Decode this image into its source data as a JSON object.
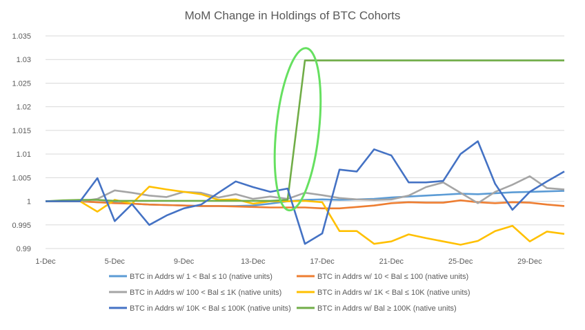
{
  "chart_data": {
    "type": "line",
    "title": "MoM Change in Holdings of BTC Cohorts",
    "xlabel": "",
    "ylabel": "",
    "ylim": [
      0.99,
      1.035
    ],
    "yticks": [
      "0.99",
      "0.995",
      "1",
      "1.005",
      "1.01",
      "1.015",
      "1.02",
      "1.025",
      "1.03",
      "1.035"
    ],
    "x": [
      "1-Dec",
      "2-Dec",
      "3-Dec",
      "4-Dec",
      "5-Dec",
      "6-Dec",
      "7-Dec",
      "8-Dec",
      "9-Dec",
      "10-Dec",
      "11-Dec",
      "12-Dec",
      "13-Dec",
      "14-Dec",
      "15-Dec",
      "16-Dec",
      "17-Dec",
      "18-Dec",
      "19-Dec",
      "20-Dec",
      "21-Dec",
      "22-Dec",
      "23-Dec",
      "24-Dec",
      "25-Dec",
      "26-Dec",
      "27-Dec",
      "28-Dec",
      "29-Dec",
      "30-Dec",
      "31-Dec"
    ],
    "xtick_labels": [
      "1-Dec",
      "5-Dec",
      "9-Dec",
      "13-Dec",
      "17-Dec",
      "21-Dec",
      "25-Dec",
      "29-Dec"
    ],
    "grid": true,
    "legend_position": "bottom",
    "annotation": "green ellipse highlighting the jump around 15-Dec to 16-Dec",
    "series": [
      {
        "name": "BTC in Addrs w/ 1 < Bal ≤ 10 (native units)",
        "color": "#5B9BD5",
        "values": [
          1.0,
          1.0,
          1.0,
          0.9998,
          0.9997,
          0.9995,
          0.9993,
          0.9992,
          0.9991,
          0.999,
          0.999,
          0.999,
          0.9991,
          0.9995,
          1.0,
          1.0003,
          1.0004,
          1.0003,
          1.0004,
          1.0005,
          1.0008,
          1.001,
          1.0012,
          1.0014,
          1.0016,
          1.0015,
          1.0017,
          1.0019,
          1.002,
          1.0021,
          1.0022
        ]
      },
      {
        "name": "BTC in Addrs w/ 10 < Bal ≤ 100 (native units)",
        "color": "#ED7D31",
        "values": [
          1.0,
          1.0,
          1.0,
          0.9998,
          0.9996,
          0.9995,
          0.9993,
          0.9992,
          0.9991,
          0.999,
          0.999,
          0.9989,
          0.9988,
          0.9987,
          0.9987,
          0.9987,
          0.9985,
          0.9985,
          0.9988,
          0.9991,
          0.9996,
          0.9998,
          0.9997,
          0.9997,
          1.0002,
          0.9998,
          0.9996,
          0.9998,
          0.9997,
          0.9993,
          0.999
        ]
      },
      {
        "name": "BTC in Addrs w/ 100 < Bal ≤ 1K (native units)",
        "color": "#A5A5A5",
        "values": [
          1.0,
          1.0,
          1.0,
          1.0005,
          1.0023,
          1.0018,
          1.0012,
          1.0009,
          1.002,
          1.0018,
          1.0008,
          1.0015,
          1.0005,
          1.001,
          1.0005,
          1.0018,
          1.0013,
          1.0007,
          1.0004,
          1.0003,
          1.0004,
          1.0012,
          1.003,
          1.004,
          1.0018,
          0.9996,
          1.002,
          1.0035,
          1.0053,
          1.0028,
          1.0025
        ]
      },
      {
        "name": "BTC in Addrs w/ 1K < Bal ≤ 10K (native units)",
        "color": "#FFC000",
        "values": [
          1.0,
          1.0,
          1.0,
          0.9978,
          1.0003,
          0.9995,
          1.0031,
          1.0025,
          1.002,
          1.0015,
          1.0003,
          1.0004,
          0.9995,
          1.0,
          1.0,
          1.0001,
          0.9998,
          0.9937,
          0.9937,
          0.991,
          0.9915,
          0.993,
          0.9922,
          0.9915,
          0.9908,
          0.9916,
          0.9937,
          0.9948,
          0.9915,
          0.9936,
          0.9931
        ]
      },
      {
        "name": "BTC in Addrs w/ 10K < Bal ≤ 100K (native units)",
        "color": "#4472C4",
        "values": [
          1.0,
          1.0,
          1.0,
          1.0049,
          0.9958,
          0.9994,
          0.995,
          0.997,
          0.9985,
          0.9993,
          1.0018,
          1.0042,
          1.003,
          1.002,
          1.0027,
          0.991,
          0.9932,
          1.0067,
          1.0063,
          1.011,
          1.0097,
          1.004,
          1.004,
          1.0043,
          1.01,
          1.0127,
          1.0037,
          0.9982,
          1.002,
          1.0042,
          1.0063
        ]
      },
      {
        "name": "BTC in Addrs w/ Bal ≥ 100K (native units)",
        "color": "#70AD47",
        "values": [
          1.0,
          1.0002,
          1.0003,
          1.0003,
          1.0001,
          1.0001,
          1.0001,
          1.0001,
          1.0001,
          1.0001,
          1.0001,
          1.0001,
          1.0001,
          1.0001,
          1.0003,
          1.0298,
          1.0298,
          1.0298,
          1.0298,
          1.0298,
          1.0298,
          1.0298,
          1.0298,
          1.0298,
          1.0298,
          1.0298,
          1.0298,
          1.0298,
          1.0298,
          1.0298,
          1.0298
        ]
      }
    ]
  }
}
